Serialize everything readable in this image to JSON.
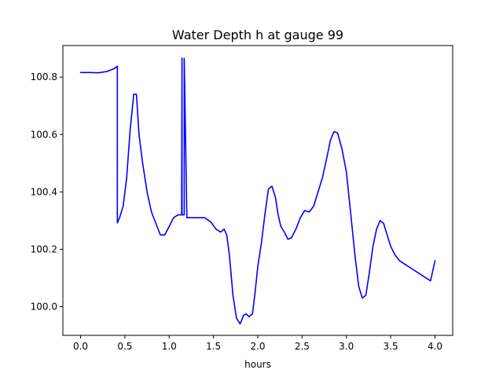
{
  "chart_data": {
    "type": "line",
    "title": "Water Depth h at gauge 99",
    "xlabel": "hours",
    "ylabel": "",
    "xlim": [
      -0.2,
      4.2
    ],
    "ylim": [
      99.9,
      100.91
    ],
    "xticks": [
      0.0,
      0.5,
      1.0,
      1.5,
      2.0,
      2.5,
      3.0,
      3.5,
      4.0
    ],
    "xtick_labels": [
      "0.0",
      "0.5",
      "1.0",
      "1.5",
      "2.0",
      "2.5",
      "3.0",
      "3.5",
      "4.0"
    ],
    "yticks": [
      100.0,
      100.2,
      100.4,
      100.6,
      100.8
    ],
    "ytick_labels": [
      "100.0",
      "100.2",
      "100.4",
      "100.6",
      "100.8"
    ],
    "grid": false,
    "series": [
      {
        "color": "#0000ff",
        "x": [
          0.0,
          0.1,
          0.2,
          0.3,
          0.38,
          0.415,
          0.415,
          0.44,
          0.48,
          0.52,
          0.56,
          0.6,
          0.63,
          0.66,
          0.7,
          0.75,
          0.8,
          0.85,
          0.9,
          0.95,
          1.0,
          1.05,
          1.1,
          1.14,
          1.145,
          1.145,
          1.17,
          1.17,
          1.2,
          1.3,
          1.4,
          1.47,
          1.53,
          1.58,
          1.62,
          1.65,
          1.68,
          1.72,
          1.76,
          1.8,
          1.84,
          1.87,
          1.9,
          1.94,
          1.97,
          2.0,
          2.04,
          2.08,
          2.12,
          2.16,
          2.2,
          2.23,
          2.26,
          2.3,
          2.34,
          2.38,
          2.43,
          2.48,
          2.53,
          2.58,
          2.63,
          2.68,
          2.73,
          2.78,
          2.82,
          2.86,
          2.9,
          2.95,
          3.0,
          3.05,
          3.1,
          3.14,
          3.18,
          3.22,
          3.26,
          3.3,
          3.34,
          3.38,
          3.42,
          3.46,
          3.5,
          3.55,
          3.6,
          3.65,
          3.7,
          3.75,
          3.8,
          3.85,
          3.9,
          3.95,
          4.0
        ],
        "y": [
          100.816,
          100.816,
          100.815,
          100.82,
          100.83,
          100.838,
          100.292,
          100.31,
          100.35,
          100.45,
          100.62,
          100.74,
          100.74,
          100.6,
          100.5,
          100.4,
          100.33,
          100.29,
          100.25,
          100.25,
          100.28,
          100.31,
          100.32,
          100.32,
          100.866,
          100.32,
          100.32,
          100.866,
          100.31,
          100.31,
          100.31,
          100.295,
          100.27,
          100.26,
          100.27,
          100.25,
          100.18,
          100.04,
          99.96,
          99.94,
          99.97,
          99.975,
          99.965,
          99.975,
          100.05,
          100.14,
          100.22,
          100.32,
          100.41,
          100.42,
          100.38,
          100.32,
          100.28,
          100.26,
          100.235,
          100.24,
          100.27,
          100.31,
          100.335,
          100.33,
          100.35,
          100.4,
          100.45,
          100.52,
          100.58,
          100.61,
          100.605,
          100.55,
          100.47,
          100.32,
          100.17,
          100.07,
          100.03,
          100.04,
          100.12,
          100.21,
          100.27,
          100.3,
          100.29,
          100.25,
          100.21,
          100.18,
          100.16,
          100.15,
          100.14,
          100.13,
          100.12,
          100.11,
          100.1,
          100.09,
          100.16
        ]
      }
    ]
  }
}
